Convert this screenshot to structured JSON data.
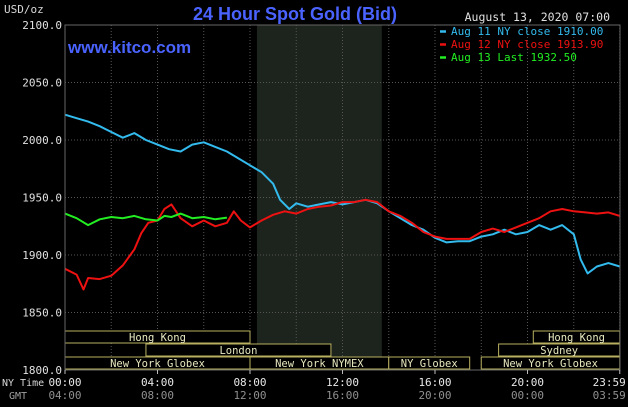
{
  "chart_data": {
    "type": "line",
    "title": "24 Hour Spot Gold (Bid)",
    "date_label": "August 13, 2020 07:00",
    "website": "www.kitco.com",
    "ylabel": "USD/oz",
    "ylim": [
      1800,
      2100
    ],
    "y_ticks": [
      "1800.0",
      "1850.0",
      "1900.0",
      "1950.0",
      "2000.0",
      "2050.0",
      "2100.0"
    ],
    "x_row_labels": [
      "NY Time",
      "GMT"
    ],
    "x_ticks_ny": [
      "00:00",
      "04:00",
      "08:00",
      "12:00",
      "16:00",
      "20:00",
      "23:59"
    ],
    "x_ticks_gmt": [
      "04:00",
      "08:00",
      "12:00",
      "16:00",
      "20:00",
      "00:00",
      "03:59"
    ],
    "legend": [
      {
        "label": "Aug 11 NY close 1910.00",
        "color": "#33bbee"
      },
      {
        "label": "Aug 12 NY close 1913.90",
        "color": "#ee1111"
      },
      {
        "label": "Aug 13 Last 1932.50",
        "color": "#22ee22"
      }
    ],
    "markets": [
      {
        "label": "Hong Kong",
        "row": 0,
        "start": 0.0,
        "end": 8.0
      },
      {
        "label": "Hong Kong",
        "row": 0,
        "start": 20.25,
        "end": 23.99
      },
      {
        "label": "London",
        "row": 1,
        "start": 3.5,
        "end": 11.5
      },
      {
        "label": "Sydney",
        "row": 1,
        "start": 18.75,
        "end": 23.99
      },
      {
        "label": "New York Globex",
        "row": 2,
        "start": 0.0,
        "end": 8.0
      },
      {
        "label": "New York NYMEX",
        "row": 2,
        "start": 8.0,
        "end": 14.0
      },
      {
        "label": "NY Globex",
        "row": 2,
        "start": 14.0,
        "end": 17.5
      },
      {
        "label": "New York Globex",
        "row": 2,
        "start": 18.0,
        "end": 23.99
      }
    ],
    "series": [
      {
        "name": "Aug 11",
        "color": "#33bbee",
        "x": [
          0.0,
          0.5,
          1.0,
          1.5,
          2.0,
          2.5,
          3.0,
          3.5,
          4.0,
          4.5,
          5.0,
          5.5,
          6.0,
          6.5,
          7.0,
          7.5,
          8.0,
          8.5,
          9.0,
          9.3,
          9.7,
          10.0,
          10.5,
          11.0,
          11.5,
          12.0,
          12.5,
          13.0,
          13.5,
          14.0,
          14.5,
          15.0,
          15.5,
          16.0,
          16.5,
          17.0,
          17.5,
          18.0,
          18.5,
          19.0,
          19.5,
          20.0,
          20.5,
          21.0,
          21.5,
          22.0,
          22.3,
          22.6,
          23.0,
          23.5,
          23.99
        ],
        "values": [
          2022,
          2019,
          2016,
          2012,
          2007,
          2002,
          2006,
          2000,
          1996,
          1992,
          1990,
          1996,
          1998,
          1994,
          1990,
          1984,
          1978,
          1972,
          1962,
          1948,
          1940,
          1945,
          1942,
          1944,
          1946,
          1944,
          1946,
          1948,
          1945,
          1938,
          1932,
          1926,
          1922,
          1915,
          1911,
          1912,
          1912,
          1916,
          1918,
          1922,
          1918,
          1920,
          1926,
          1922,
          1926,
          1918,
          1896,
          1884,
          1890,
          1893,
          1890
        ]
      },
      {
        "name": "Aug 12",
        "color": "#ee1111",
        "x": [
          0.0,
          0.5,
          0.8,
          1.0,
          1.5,
          2.0,
          2.5,
          3.0,
          3.3,
          3.6,
          4.0,
          4.3,
          4.6,
          5.0,
          5.5,
          6.0,
          6.5,
          7.0,
          7.3,
          7.6,
          8.0,
          8.5,
          9.0,
          9.5,
          10.0,
          10.5,
          11.0,
          11.5,
          12.0,
          12.5,
          13.0,
          13.5,
          14.0,
          14.5,
          15.0,
          15.5,
          16.0,
          16.5,
          17.0,
          17.5,
          18.0,
          18.5,
          19.0,
          19.5,
          20.0,
          20.5,
          21.0,
          21.5,
          22.0,
          22.5,
          23.0,
          23.5,
          23.99
        ],
        "values": [
          1888,
          1883,
          1870,
          1880,
          1879,
          1882,
          1891,
          1905,
          1919,
          1928,
          1930,
          1940,
          1944,
          1932,
          1925,
          1930,
          1925,
          1928,
          1938,
          1930,
          1924,
          1930,
          1935,
          1938,
          1936,
          1940,
          1942,
          1943,
          1946,
          1946,
          1948,
          1946,
          1938,
          1934,
          1928,
          1920,
          1916,
          1914,
          1914,
          1914,
          1920,
          1923,
          1920,
          1924,
          1928,
          1932,
          1938,
          1940,
          1938,
          1937,
          1936,
          1937,
          1934
        ]
      },
      {
        "name": "Aug 13",
        "color": "#22ee22",
        "x": [
          0.0,
          0.5,
          1.0,
          1.5,
          2.0,
          2.5,
          3.0,
          3.5,
          4.0,
          4.3,
          4.6,
          5.0,
          5.5,
          6.0,
          6.5,
          7.0
        ],
        "values": [
          1936,
          1932,
          1926,
          1931,
          1933,
          1932,
          1934,
          1931,
          1930,
          1934,
          1933,
          1936,
          1932,
          1933,
          1931,
          1932.5
        ]
      }
    ]
  }
}
